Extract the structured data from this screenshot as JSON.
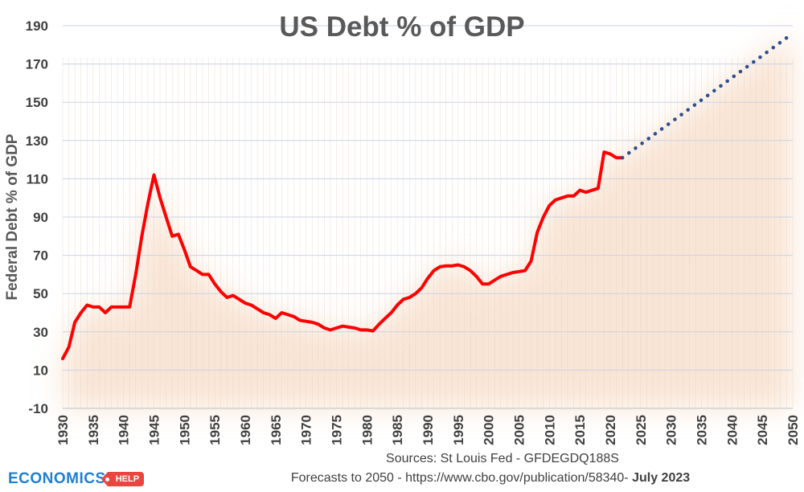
{
  "chart_data": {
    "type": "line",
    "title": "US Debt % of GDP",
    "ylabel": "Federal Debt % of GDP",
    "xlabel": "",
    "xlim": [
      1930,
      2050
    ],
    "ylim": [
      -10,
      190
    ],
    "yticks": [
      -10,
      10,
      30,
      50,
      70,
      90,
      110,
      130,
      150,
      170,
      190
    ],
    "xticks": [
      1930,
      1935,
      1940,
      1945,
      1950,
      1955,
      1960,
      1965,
      1970,
      1975,
      1980,
      1985,
      1990,
      1995,
      2000,
      2005,
      2010,
      2015,
      2020,
      2025,
      2030,
      2035,
      2040,
      2045,
      2050
    ],
    "grid": true,
    "series": [
      {
        "style": "solid",
        "color": "#ff0000",
        "x": [
          1930,
          1931,
          1932,
          1933,
          1934,
          1935,
          1936,
          1937,
          1938,
          1939,
          1940,
          1941,
          1942,
          1943,
          1944,
          1945,
          1946,
          1947,
          1948,
          1949,
          1950,
          1951,
          1952,
          1953,
          1954,
          1955,
          1956,
          1957,
          1958,
          1959,
          1960,
          1961,
          1962,
          1963,
          1964,
          1965,
          1966,
          1967,
          1968,
          1969,
          1970,
          1971,
          1972,
          1973,
          1974,
          1975,
          1976,
          1977,
          1978,
          1979,
          1980,
          1981,
          1982,
          1983,
          1984,
          1985,
          1986,
          1987,
          1988,
          1989,
          1990,
          1991,
          1992,
          1993,
          1994,
          1995,
          1996,
          1997,
          1998,
          1999,
          2000,
          2001,
          2002,
          2003,
          2004,
          2005,
          2006,
          2007,
          2008,
          2009,
          2010,
          2011,
          2012,
          2013,
          2014,
          2015,
          2016,
          2017,
          2018,
          2019,
          2020,
          2021,
          2022
        ],
        "values": [
          16,
          22,
          35,
          40,
          44,
          43,
          43,
          40,
          43,
          43,
          43,
          43,
          60,
          80,
          97,
          112,
          100,
          90,
          80,
          81,
          73,
          64,
          62,
          60,
          60,
          55,
          51,
          48,
          49,
          47,
          45,
          44,
          42,
          40,
          39,
          37,
          40,
          39,
          38,
          36,
          35.5,
          35,
          34,
          32,
          31,
          32,
          33,
          32.5,
          32,
          31,
          31,
          30.5,
          34,
          37,
          40,
          44,
          47,
          48,
          50,
          53,
          58,
          62,
          64,
          64.5,
          64.5,
          65,
          64,
          62,
          59,
          55,
          55,
          57,
          59,
          60,
          61,
          61.5,
          62,
          67,
          82,
          90,
          96,
          99,
          100,
          101,
          101,
          104,
          103,
          104,
          105,
          124,
          123,
          121,
          121
        ]
      },
      {
        "style": "dotted",
        "color": "#2f4f8f",
        "x": [
          2022,
          2050
        ],
        "values": [
          121,
          186
        ]
      }
    ]
  },
  "footer": {
    "sources": "Sources: St Louis Fed - GFDEGDQ188S",
    "forecast_prefix": "Forecasts to 2050 -  https://www.cbo.gov/publication/58340-",
    "forecast_date": "July 2023"
  },
  "logo": {
    "word": "ECONOMICS",
    "badge": "HELP"
  }
}
